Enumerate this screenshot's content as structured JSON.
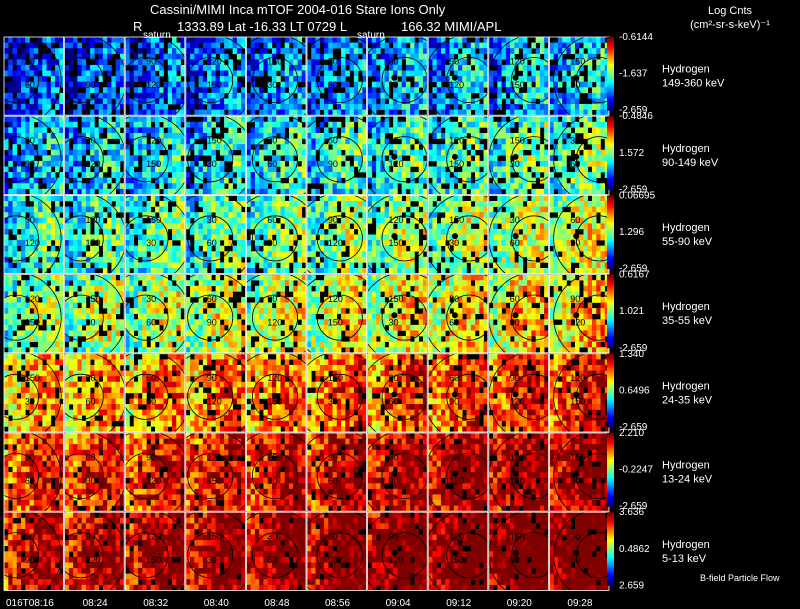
{
  "header": {
    "title": "Cassini/MIMI Inca mTOF  2004-016   Stare   Ions Only",
    "subtitle_r": "R",
    "subtitle_info": "1333.89 Lat -16.33 LT 0729 L",
    "subtitle_l": "166.32  MIMI/APL",
    "saturn_label_1": "saturn",
    "saturn_label_2": "saturn"
  },
  "units": {
    "line1": "Log Cnts",
    "line2": "(cm²-sr-s-keV)⁻¹"
  },
  "footer": {
    "legend_note": "B-field Particle Flow"
  },
  "chart_data": {
    "type": "heatmap",
    "title": "Cassini/MIMI Inca mTOF 2004-016 Stare Ions Only",
    "x_tick_labels": [
      "016T08:16",
      "08:24",
      "08:32",
      "08:40",
      "08:48",
      "08:56",
      "09:04",
      "09:12",
      "09:20",
      "09:28"
    ],
    "rows": [
      {
        "species": "Hydrogen",
        "energy": "149-360 keV",
        "cmax": "-0.6144",
        "cmid": "-1.637",
        "cmin": "-2.659"
      },
      {
        "species": "Hydrogen",
        "energy": "90-149 keV",
        "cmax": "-0.4846",
        "cmid": "1.572",
        "cmin": "-2.659"
      },
      {
        "species": "Hydrogen",
        "energy": "55-90 keV",
        "cmax": "0.06695",
        "cmid": "1.296",
        "cmin": "-2.659"
      },
      {
        "species": "Hydrogen",
        "energy": "35-55 keV",
        "cmax": "0.6167",
        "cmid": "1.021",
        "cmin": "-2.659"
      },
      {
        "species": "Hydrogen",
        "energy": "24-35 keV",
        "cmax": "1.340",
        "cmid": "0.6496",
        "cmin": "-2.659"
      },
      {
        "species": "Hydrogen",
        "energy": "13-24 keV",
        "cmax": "2.210",
        "cmid": "-0.2247",
        "cmin": "-2.659"
      },
      {
        "species": "Hydrogen",
        "energy": "5-13 keV",
        "cmax": "3.636",
        "cmid": "0.4862",
        "cmin": "2.659"
      }
    ],
    "row_intensity": [
      0.15,
      0.28,
      0.38,
      0.48,
      0.66,
      0.8,
      0.9
    ],
    "contour_labels": [
      "30",
      "60",
      "90",
      "120",
      "150"
    ]
  },
  "colors": {
    "background": "#000000",
    "text": "#ffffff",
    "grid": "#ffffff",
    "contour": "#000000"
  }
}
